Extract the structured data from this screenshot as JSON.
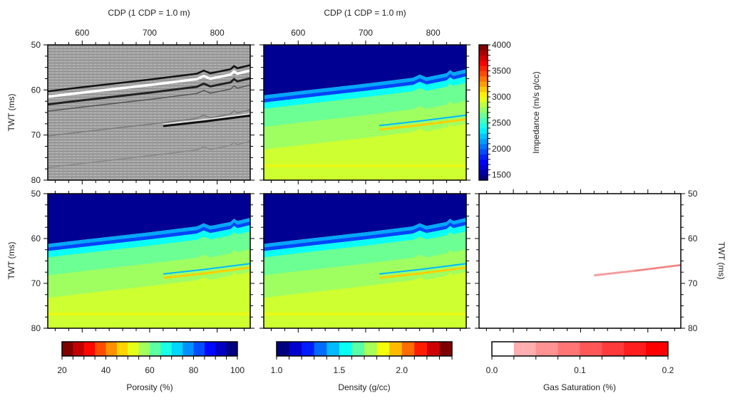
{
  "chart_data": [
    {
      "type": "heatmap",
      "panel": "seismic",
      "colormap": "gray",
      "xlabel": "CDP (1 CDP = 1.0 m)",
      "ylabel": "TWT (ms)",
      "xlim": [
        549,
        849
      ],
      "ylim": [
        80,
        50
      ],
      "xticks": [
        "600",
        "700",
        "800"
      ],
      "yticks": [
        "50",
        "60",
        "70",
        "80"
      ]
    },
    {
      "type": "heatmap",
      "panel": "impedance",
      "colormap": "jet",
      "xlabel": "CDP (1 CDP = 1.0 m)",
      "xlim": [
        549,
        849
      ],
      "ylim": [
        80,
        50
      ],
      "xticks": [
        "600",
        "700",
        "800"
      ],
      "colorbar": {
        "label": "Impedance  (m/s g/cc)",
        "range": [
          1400,
          4000
        ],
        "ticks": [
          "1500",
          "2000",
          "2500",
          "3000",
          "3500",
          "4000"
        ]
      }
    },
    {
      "type": "heatmap",
      "panel": "porosity",
      "colormap": "jet-reversed",
      "ylabel": "TWT (ms)",
      "xlim": [
        549,
        849
      ],
      "ylim": [
        80,
        50
      ],
      "yticks": [
        "50",
        "60",
        "70",
        "80"
      ],
      "colorbar": {
        "label": "Porosity (%)",
        "range": [
          20,
          100
        ],
        "ticks": [
          "20",
          "40",
          "60",
          "80",
          "100"
        ]
      }
    },
    {
      "type": "heatmap",
      "panel": "density",
      "colormap": "jet",
      "xlim": [
        549,
        849
      ],
      "ylim": [
        80,
        50
      ],
      "colorbar": {
        "label": "Density (g/cc)",
        "range": [
          1.0,
          2.4
        ],
        "ticks": [
          "1.0",
          "1.5",
          "2.0"
        ]
      }
    },
    {
      "type": "heatmap",
      "panel": "gas-saturation",
      "colormap": "white-red",
      "ylabel": "TWT (ms)",
      "xlim": [
        549,
        849
      ],
      "ylim": [
        80,
        50
      ],
      "yticks": [
        "50",
        "60",
        "70",
        "80"
      ],
      "colorbar": {
        "label": "Gas Saturation (%)",
        "range": [
          0,
          0.2
        ],
        "ticks": [
          "0.0",
          "0.1",
          "0.2"
        ]
      }
    }
  ],
  "horizons": {
    "seafloor": [
      [
        549,
        61.2
      ],
      [
        600,
        60.3
      ],
      [
        700,
        58.6
      ],
      [
        770,
        57.3
      ],
      [
        780,
        56.6
      ],
      [
        790,
        57.2
      ],
      [
        820,
        56.3
      ],
      [
        825,
        55.6
      ],
      [
        830,
        56.1
      ],
      [
        849,
        55.4
      ]
    ],
    "gas_reflector": [
      [
        720,
        67.9
      ],
      [
        780,
        66.9
      ],
      [
        849,
        65.6
      ]
    ]
  },
  "labels": {
    "top_x": "CDP (1 CDP = 1.0 m)",
    "y": "TWT (ms)"
  }
}
